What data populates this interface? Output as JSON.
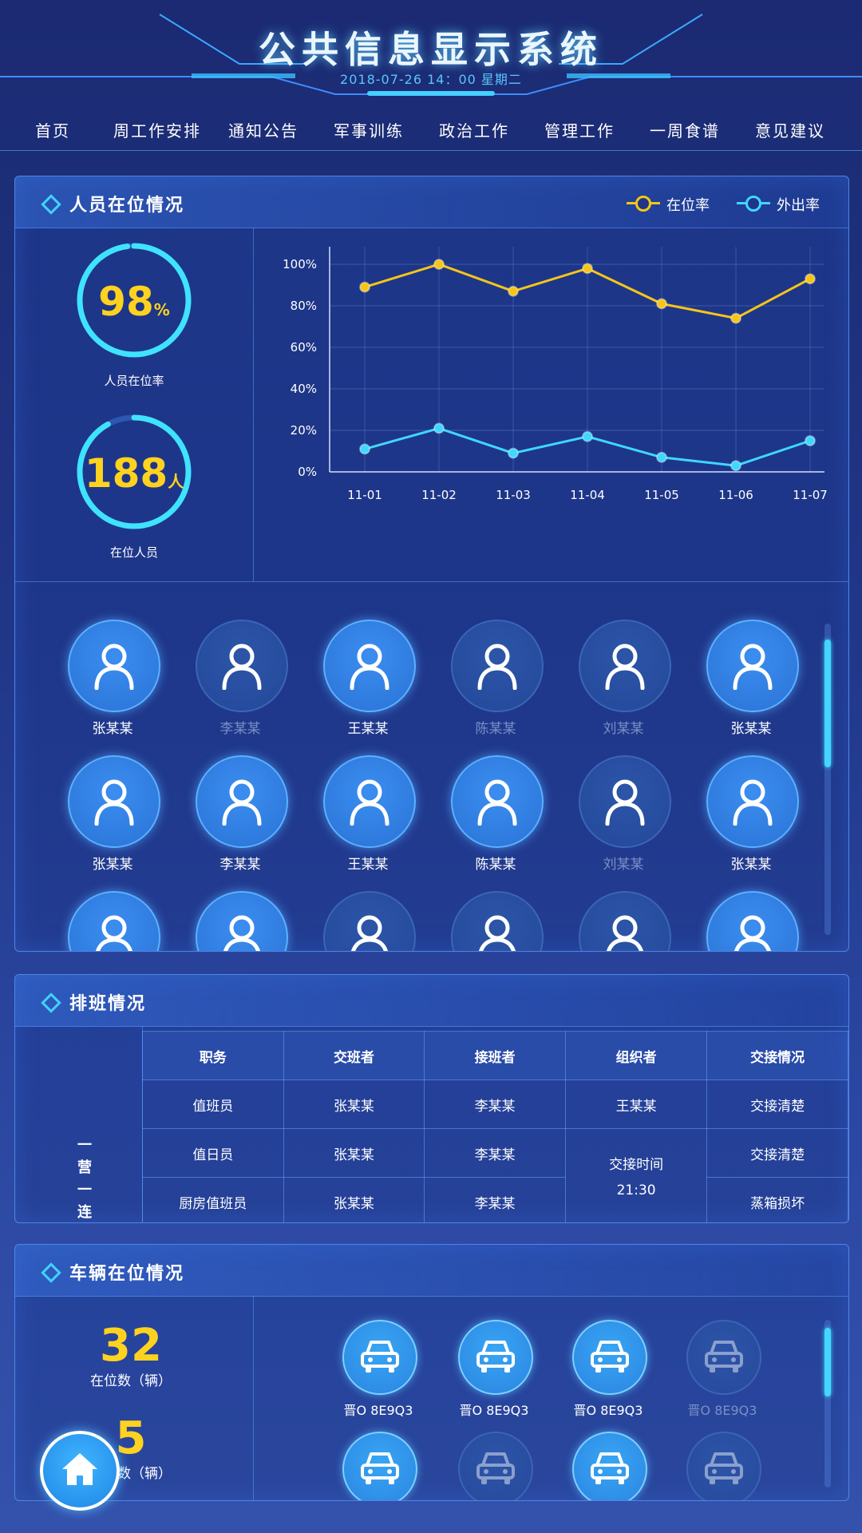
{
  "header": {
    "title": "公共信息显示系统",
    "datetime": "2018-07-26  14：00  星期二"
  },
  "nav": [
    "首页",
    "周工作安排",
    "通知公告",
    "军事训练",
    "政治工作",
    "管理工作",
    "一周食谱",
    "意见建议"
  ],
  "personnel": {
    "title": "人员在位情况",
    "rate_value": "98",
    "rate_unit": "%",
    "rate_label": "人员在位率",
    "rate_fraction": 0.98,
    "count_value": "188",
    "count_unit": "人",
    "count_label": "在位人员",
    "count_fraction": 0.92,
    "legend": [
      "在位率",
      "外出率"
    ],
    "people": [
      {
        "name": "张某某",
        "present": true
      },
      {
        "name": "李某某",
        "present": false
      },
      {
        "name": "王某某",
        "present": true
      },
      {
        "name": "陈某某",
        "present": false
      },
      {
        "name": "刘某某",
        "present": false
      },
      {
        "name": "张某某",
        "present": true
      },
      {
        "name": "张某某",
        "present": true
      },
      {
        "name": "李某某",
        "present": true
      },
      {
        "name": "王某某",
        "present": true
      },
      {
        "name": "陈某某",
        "present": true
      },
      {
        "name": "刘某某",
        "present": false
      },
      {
        "name": "张某某",
        "present": true
      },
      {
        "name": "",
        "present": true
      },
      {
        "name": "",
        "present": true
      },
      {
        "name": "",
        "present": false
      },
      {
        "name": "",
        "present": false
      },
      {
        "name": "",
        "present": false
      },
      {
        "name": "",
        "present": true
      }
    ]
  },
  "chart_data": {
    "type": "line",
    "categories": [
      "11-01",
      "11-02",
      "11-03",
      "11-04",
      "11-05",
      "11-06",
      "11-07"
    ],
    "series": [
      {
        "name": "在位率",
        "color": "#f5c518",
        "values": [
          89,
          100,
          87,
          98,
          81,
          74,
          93
        ]
      },
      {
        "name": "外出率",
        "color": "#3fd7ff",
        "values": [
          11,
          21,
          9,
          17,
          7,
          3,
          15
        ]
      }
    ],
    "yticks": [
      "100%",
      "80%",
      "60%",
      "40%",
      "20%",
      "0%"
    ],
    "ylim": [
      0,
      100
    ],
    "grid": true
  },
  "schedule": {
    "title": "排班情况",
    "unit": [
      "一",
      "营",
      "一",
      "连"
    ],
    "headers": [
      "职务",
      "交班者",
      "接班者",
      "组织者",
      "交接情况"
    ],
    "rows": [
      [
        "值班员",
        "张某某",
        "李某某",
        "王某某",
        "交接清楚"
      ],
      [
        "值日员",
        "张某某",
        "李某某",
        "",
        "交接清楚"
      ],
      [
        "厨房值班员",
        "张某某",
        "李某某",
        "",
        "蒸箱损坏"
      ]
    ],
    "handover_label": "交接时间",
    "handover_time": "21:30"
  },
  "vehicles": {
    "title": "车辆在位情况",
    "present_num": "32",
    "present_label": "在位数（辆）",
    "out_num": "5",
    "out_label": "外出数（辆）",
    "cars": [
      {
        "plate": "晋O 8E9Q3",
        "present": true
      },
      {
        "plate": "晋O 8E9Q3",
        "present": true
      },
      {
        "plate": "晋O 8E9Q3",
        "present": true
      },
      {
        "plate": "晋O 8E9Q3",
        "present": false
      },
      {
        "plate": "",
        "present": true
      },
      {
        "plate": "",
        "present": false
      },
      {
        "plate": "",
        "present": true
      },
      {
        "plate": "",
        "present": false
      }
    ]
  },
  "colors": {
    "accent": "#3fd7ff",
    "highlight": "#ffd21f"
  }
}
